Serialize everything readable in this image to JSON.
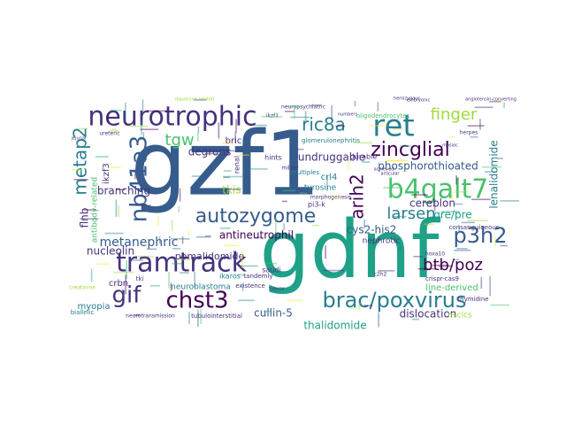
{
  "palette": {
    "dark_purple": "#440154",
    "indigo": "#46327e",
    "blue": "#365c8d",
    "teal_blue": "#277f8e",
    "teal": "#1fa187",
    "green": "#4ac16d",
    "lime": "#a0da39",
    "yellow": "#fde725"
  },
  "words": [
    {
      "text": "gzf1",
      "color": "blue"
    },
    {
      "text": "gdnf",
      "color": "teal"
    },
    {
      "text": "neurotrophic",
      "color": "indigo"
    },
    {
      "text": "tramtrack",
      "color": "indigo"
    },
    {
      "text": "ret",
      "color": "teal_blue"
    },
    {
      "text": "brac/poxvirus",
      "color": "teal_blue"
    },
    {
      "text": "b4galt7",
      "color": "green"
    },
    {
      "text": "nb41a3",
      "color": "blue"
    },
    {
      "text": "chst3",
      "color": "dark_purple"
    },
    {
      "text": "zincglial",
      "color": "dark_purple"
    },
    {
      "text": "p3h2",
      "color": "blue"
    },
    {
      "text": "autozygome",
      "color": "blue"
    },
    {
      "text": "ric8a",
      "color": "teal_blue"
    },
    {
      "text": "metap2",
      "color": "teal_blue"
    },
    {
      "text": "gif",
      "color": "indigo"
    },
    {
      "text": "btb/poz",
      "color": "dark_purple"
    },
    {
      "text": "arih2",
      "color": "dark_purple"
    },
    {
      "text": "finger",
      "color": "lime"
    },
    {
      "text": "larsen",
      "color": "teal_blue"
    },
    {
      "text": "tgw",
      "color": "green"
    },
    {
      "text": "lenalidomide",
      "color": "teal_blue"
    },
    {
      "text": "metanephric",
      "color": "blue"
    },
    {
      "text": "phosphorothioated",
      "color": "blue"
    },
    {
      "text": "undruggable",
      "color": "indigo"
    },
    {
      "text": "antineutrophil",
      "color": "dark_purple"
    },
    {
      "text": "pomalidomide",
      "color": "indigo"
    },
    {
      "text": "thalidomide",
      "color": "teal"
    },
    {
      "text": "cullin-5",
      "color": "blue"
    },
    {
      "text": "dislocation",
      "color": "indigo"
    },
    {
      "text": "cereblon",
      "color": "indigo"
    },
    {
      "text": "gre/pre",
      "color": "teal"
    },
    {
      "text": "cys2-his2",
      "color": "blue"
    },
    {
      "text": "line-derived",
      "color": "green"
    },
    {
      "text": "flnb",
      "color": "indigo"
    },
    {
      "text": "ikzf3",
      "color": "indigo"
    },
    {
      "text": "branching",
      "color": "indigo"
    },
    {
      "text": "degrons",
      "color": "indigo"
    },
    {
      "text": "nucleolin",
      "color": "indigo"
    },
    {
      "text": "crbn",
      "color": "indigo"
    },
    {
      "text": "myopia",
      "color": "teal_blue"
    },
    {
      "text": "tkis",
      "color": "lime"
    },
    {
      "text": "bric",
      "color": "indigo"
    },
    {
      "text": "crl4",
      "color": "teal_blue"
    },
    {
      "text": "tyrosine",
      "color": "teal_blue"
    },
    {
      "text": "antibody-related",
      "color": "green"
    },
    {
      "text": "neuroblastoma",
      "color": "teal_blue"
    },
    {
      "text": "nephrotic",
      "color": "indigo"
    },
    {
      "text": "nsclcs",
      "color": "lime"
    },
    {
      "text": "pi3-k",
      "color": "indigo"
    },
    {
      "text": "renal",
      "color": "indigo"
    },
    {
      "text": "hints",
      "color": "indigo"
    },
    {
      "text": "durable",
      "color": "indigo"
    },
    {
      "text": "multiples",
      "color": "teal_blue"
    },
    {
      "text": "ikaros",
      "color": "teal_blue"
    },
    {
      "text": "saudi",
      "color": "indigo"
    },
    {
      "text": "tandemly",
      "color": "indigo"
    },
    {
      "text": "existence",
      "color": "indigo"
    },
    {
      "text": "biallelic",
      "color": "teal_blue"
    },
    {
      "text": "neurotransmission",
      "color": "indigo"
    },
    {
      "text": "tubulointerstitial",
      "color": "indigo"
    },
    {
      "text": "glomerulonephritis",
      "color": "teal_blue"
    },
    {
      "text": "neuropsychiatric",
      "color": "indigo"
    },
    {
      "text": "oligodendrocytes",
      "color": "green"
    },
    {
      "text": "consanguineous",
      "color": "indigo"
    },
    {
      "text": "thymidine",
      "color": "indigo"
    },
    {
      "text": "crispr-cas9",
      "color": "indigo"
    },
    {
      "text": "hoxa10",
      "color": "indigo"
    },
    {
      "text": "creatinine",
      "color": "lime"
    },
    {
      "text": "morphogenesis",
      "color": "indigo"
    },
    {
      "text": "dopamine-related",
      "color": "lime"
    },
    {
      "text": "hemizygous",
      "color": "indigo"
    },
    {
      "text": "ureteric",
      "color": "indigo"
    },
    {
      "text": "ikzf1",
      "color": "indigo"
    },
    {
      "text": "herpes",
      "color": "indigo"
    },
    {
      "text": "c2h2",
      "color": "indigo"
    },
    {
      "text": "tki",
      "color": "indigo"
    },
    {
      "text": "milder",
      "color": "indigo"
    },
    {
      "text": "numbers",
      "color": "indigo"
    },
    {
      "text": "angiotensin-converting",
      "color": "indigo"
    },
    {
      "text": "embryonic",
      "color": "indigo"
    },
    {
      "text": "articular",
      "color": "indigo"
    },
    {
      "text": "achieved",
      "color": "indigo"
    },
    {
      "text": "mosaic",
      "color": "indigo"
    },
    {
      "text": "tubular",
      "color": "indigo"
    },
    {
      "text": "jejunal",
      "color": "indigo"
    }
  ]
}
